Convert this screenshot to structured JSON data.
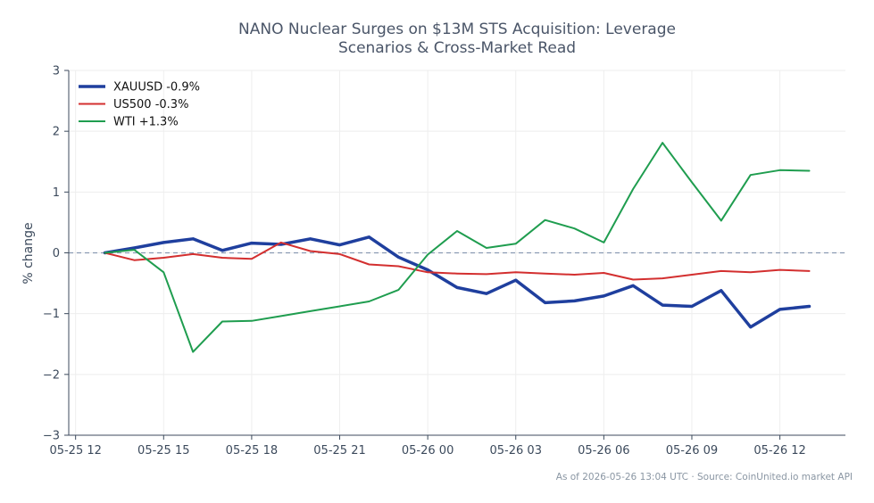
{
  "chart_data": {
    "type": "line",
    "title_lines": [
      "NANO Nuclear Surges on $13M STS Acquisition: Leverage",
      "Scenarios & Cross-Market Read"
    ],
    "ylabel": "% change",
    "xlabel": "",
    "ylim": [
      -3,
      3
    ],
    "yticks": [
      {
        "v": 3,
        "label": "3"
      },
      {
        "v": 2,
        "label": "2"
      },
      {
        "v": 1,
        "label": "1"
      },
      {
        "v": 0,
        "label": "0"
      },
      {
        "v": -1,
        "label": "−1"
      },
      {
        "v": -2,
        "label": "−2"
      },
      {
        "v": -3,
        "label": "−3"
      }
    ],
    "xlim": [
      "2026-05-25 11:46",
      "2026-05-26 14:14"
    ],
    "xticks": [
      {
        "t": "2026-05-25 12:00",
        "label": "05-25 12"
      },
      {
        "t": "2026-05-25 15:00",
        "label": "05-25 15"
      },
      {
        "t": "2026-05-25 18:00",
        "label": "05-25 18"
      },
      {
        "t": "2026-05-25 21:00",
        "label": "05-25 21"
      },
      {
        "t": "2026-05-26 00:00",
        "label": "05-26 00"
      },
      {
        "t": "2026-05-26 03:00",
        "label": "05-26 03"
      },
      {
        "t": "2026-05-26 06:00",
        "label": "05-26 06"
      },
      {
        "t": "2026-05-26 09:00",
        "label": "05-26 09"
      },
      {
        "t": "2026-05-26 12:00",
        "label": "05-26 12"
      }
    ],
    "x": [
      "2026-05-25 13:00",
      "2026-05-25 14:00",
      "2026-05-25 15:00",
      "2026-05-25 16:00",
      "2026-05-25 17:00",
      "2026-05-25 18:00",
      "2026-05-25 19:00",
      "2026-05-25 20:00",
      "2026-05-25 21:00",
      "2026-05-25 22:00",
      "2026-05-25 23:00",
      "2026-05-26 00:00",
      "2026-05-26 01:00",
      "2026-05-26 02:00",
      "2026-05-26 03:00",
      "2026-05-26 04:00",
      "2026-05-26 05:00",
      "2026-05-26 06:00",
      "2026-05-26 07:00",
      "2026-05-26 08:00",
      "2026-05-26 09:00",
      "2026-05-26 10:00",
      "2026-05-26 11:00",
      "2026-05-26 12:00",
      "2026-05-26 13:00"
    ],
    "series": [
      {
        "name": "XAUUSD -0.9%",
        "color": "#1f3f9e",
        "width": 3.5,
        "values": [
          0.0,
          0.08,
          0.17,
          0.23,
          0.04,
          0.16,
          0.14,
          0.23,
          0.13,
          0.26,
          -0.07,
          -0.28,
          -0.57,
          -0.67,
          -0.45,
          -0.82,
          -0.79,
          -0.71,
          -0.54,
          -0.86,
          -0.88,
          -0.62,
          -1.22,
          -0.93,
          -0.88
        ]
      },
      {
        "name": "US500 -0.3%",
        "color": "#d32f2f",
        "width": 2,
        "values": [
          0.0,
          -0.12,
          -0.08,
          -0.02,
          -0.08,
          -0.1,
          0.17,
          0.03,
          -0.02,
          -0.19,
          -0.22,
          -0.32,
          -0.34,
          -0.35,
          -0.32,
          -0.34,
          -0.36,
          -0.33,
          -0.44,
          -0.42,
          -0.36,
          -0.3,
          -0.32,
          -0.28,
          -0.3
        ]
      },
      {
        "name": "WTI +1.3%",
        "color": "#1f9d4f",
        "width": 2,
        "values": [
          0.0,
          0.05,
          -0.32,
          -1.63,
          -1.13,
          -1.12,
          -1.04,
          -0.96,
          -0.88,
          -0.8,
          -0.61,
          -0.03,
          0.36,
          0.08,
          0.15,
          0.54,
          0.4,
          0.17,
          1.05,
          1.81,
          1.16,
          0.53,
          1.28,
          1.36,
          1.35
        ]
      }
    ],
    "reference_line": {
      "y": 0,
      "style": "dashed",
      "color": "#8a9bb3"
    },
    "grid": true,
    "legend": "top-left",
    "colors": {
      "axis": "#3c4a5c",
      "grid": "#eeeeee"
    }
  },
  "footer": "As of 2026-05-26 13:04 UTC · Source: CoinUnited.io market API"
}
